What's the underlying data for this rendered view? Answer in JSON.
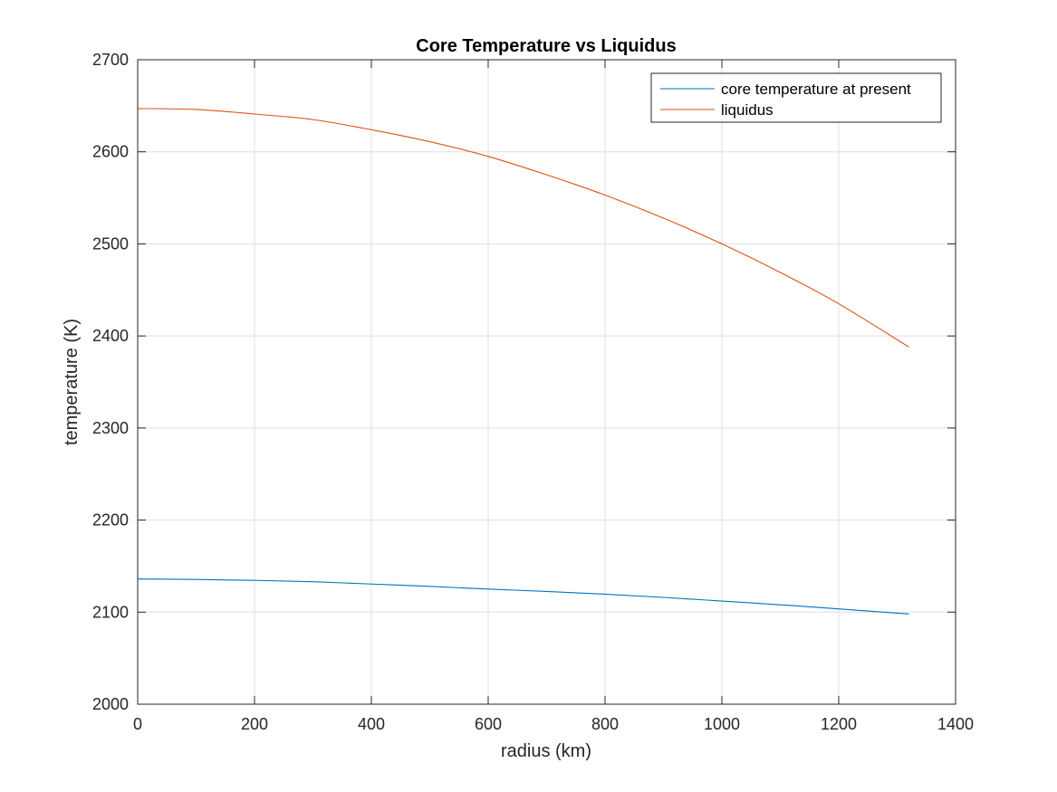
{
  "chart_data": {
    "type": "line",
    "title": "Core Temperature vs Liquidus",
    "xlabel": "radius (km)",
    "ylabel": "temperature (K)",
    "xlim": [
      0,
      1400
    ],
    "ylim": [
      2000,
      2700
    ],
    "xticks": [
      0,
      200,
      400,
      600,
      800,
      1000,
      1200,
      1400
    ],
    "yticks": [
      2000,
      2100,
      2200,
      2300,
      2400,
      2500,
      2600,
      2700
    ],
    "grid": true,
    "legend_position": "top-right",
    "series": [
      {
        "name": "core temperature at present",
        "color": "#0072BD",
        "x": [
          0,
          100,
          200,
          300,
          400,
          500,
          600,
          700,
          800,
          900,
          1000,
          1100,
          1200,
          1320
        ],
        "y": [
          2136,
          2135.5,
          2134.5,
          2133,
          2130.5,
          2128,
          2125,
          2122.5,
          2119.5,
          2116,
          2112,
          2108,
          2103.5,
          2098
        ]
      },
      {
        "name": "liquidus",
        "color": "#D95319",
        "x": [
          0,
          100,
          200,
          300,
          400,
          500,
          600,
          700,
          800,
          900,
          1000,
          1100,
          1200,
          1320
        ],
        "y": [
          2647,
          2646,
          2641,
          2635,
          2624,
          2611,
          2595,
          2575,
          2553,
          2528,
          2500,
          2469,
          2435,
          2388
        ]
      }
    ]
  }
}
